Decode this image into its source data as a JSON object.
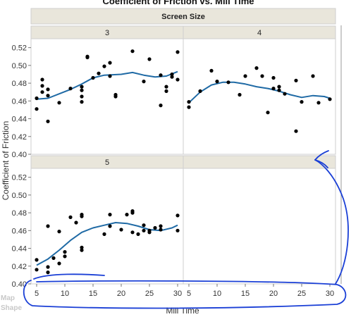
{
  "chart_data": {
    "type": "scatter",
    "title": "Coefficient of Friction vs. Mill Time",
    "group_label": "Screen Size",
    "xlabel": "Mill Time",
    "ylabel": "Coefficient of Friction",
    "side_labels": [
      "Map",
      "Shape"
    ],
    "xlim": [
      4,
      31
    ],
    "ylim": [
      0.4,
      0.53
    ],
    "x_ticks": [
      5,
      10,
      15,
      20,
      25,
      30
    ],
    "y_ticks": [
      0.4,
      0.42,
      0.44,
      0.46,
      0.48,
      0.5,
      0.52
    ],
    "fit": "smoother",
    "colors": {
      "point": "#000000",
      "smoother": "#1f6aa5",
      "header": "#e9e6db",
      "annotation": "#1a3fd6",
      "frame": "#cfcfcf"
    },
    "panels": [
      {
        "label": "3",
        "points": [
          [
            5,
            0.463
          ],
          [
            5,
            0.451
          ],
          [
            6,
            0.484
          ],
          [
            6,
            0.477
          ],
          [
            6,
            0.47
          ],
          [
            7,
            0.466
          ],
          [
            7,
            0.473
          ],
          [
            7,
            0.437
          ],
          [
            9,
            0.458
          ],
          [
            11,
            0.474
          ],
          [
            13,
            0.459
          ],
          [
            13,
            0.465
          ],
          [
            13,
            0.472
          ],
          [
            13,
            0.476
          ],
          [
            14,
            0.51
          ],
          [
            14,
            0.509
          ],
          [
            15,
            0.486
          ],
          [
            16,
            0.491
          ],
          [
            17,
            0.499
          ],
          [
            18,
            0.503
          ],
          [
            18,
            0.488
          ],
          [
            19,
            0.467
          ],
          [
            19,
            0.465
          ],
          [
            22,
            0.516
          ],
          [
            24,
            0.482
          ],
          [
            25,
            0.507
          ],
          [
            27,
            0.455
          ],
          [
            27,
            0.489
          ],
          [
            28,
            0.471
          ],
          [
            28,
            0.476
          ],
          [
            29,
            0.49
          ],
          [
            29,
            0.487
          ],
          [
            30,
            0.484
          ],
          [
            30,
            0.515
          ]
        ],
        "smoother": [
          [
            5,
            0.462
          ],
          [
            7,
            0.463
          ],
          [
            9,
            0.468
          ],
          [
            11,
            0.473
          ],
          [
            13,
            0.479
          ],
          [
            15,
            0.486
          ],
          [
            17,
            0.489
          ],
          [
            20,
            0.49
          ],
          [
            22,
            0.492
          ],
          [
            24,
            0.489
          ],
          [
            26,
            0.487
          ],
          [
            28,
            0.488
          ],
          [
            30,
            0.493
          ]
        ]
      },
      {
        "label": "4",
        "points": [
          [
            5,
            0.459
          ],
          [
            5,
            0.453
          ],
          [
            7,
            0.471
          ],
          [
            9,
            0.494
          ],
          [
            10,
            0.482
          ],
          [
            12,
            0.481
          ],
          [
            14,
            0.467
          ],
          [
            15,
            0.488
          ],
          [
            17,
            0.497
          ],
          [
            18,
            0.488
          ],
          [
            19,
            0.447
          ],
          [
            20,
            0.474
          ],
          [
            20,
            0.486
          ],
          [
            21,
            0.476
          ],
          [
            21,
            0.472
          ],
          [
            22,
            0.468
          ],
          [
            24,
            0.426
          ],
          [
            24,
            0.483
          ],
          [
            25,
            0.459
          ],
          [
            27,
            0.488
          ],
          [
            28,
            0.458
          ],
          [
            30,
            0.462
          ]
        ],
        "smoother": [
          [
            5,
            0.458
          ],
          [
            7,
            0.47
          ],
          [
            9,
            0.478
          ],
          [
            11,
            0.481
          ],
          [
            13,
            0.481
          ],
          [
            15,
            0.479
          ],
          [
            17,
            0.476
          ],
          [
            19,
            0.474
          ],
          [
            21,
            0.471
          ],
          [
            23,
            0.467
          ],
          [
            25,
            0.464
          ],
          [
            27,
            0.466
          ],
          [
            29,
            0.465
          ],
          [
            30,
            0.463
          ]
        ]
      },
      {
        "label": "5",
        "points": [
          [
            5,
            0.427
          ],
          [
            5,
            0.416
          ],
          [
            7,
            0.419
          ],
          [
            7,
            0.413
          ],
          [
            7,
            0.465
          ],
          [
            8,
            0.429
          ],
          [
            9,
            0.423
          ],
          [
            9,
            0.459
          ],
          [
            10,
            0.431
          ],
          [
            10,
            0.436
          ],
          [
            11,
            0.475
          ],
          [
            12,
            0.469
          ],
          [
            13,
            0.478
          ],
          [
            13,
            0.476
          ],
          [
            13,
            0.441
          ],
          [
            13,
            0.438
          ],
          [
            17,
            0.456
          ],
          [
            18,
            0.478
          ],
          [
            18,
            0.465
          ],
          [
            20,
            0.461
          ],
          [
            21,
            0.478
          ],
          [
            22,
            0.48
          ],
          [
            22,
            0.482
          ],
          [
            22,
            0.458
          ],
          [
            23,
            0.456
          ],
          [
            24,
            0.46
          ],
          [
            24,
            0.466
          ],
          [
            25,
            0.46
          ],
          [
            25,
            0.458
          ],
          [
            26,
            0.463
          ],
          [
            27,
            0.465
          ],
          [
            27,
            0.461
          ],
          [
            30,
            0.477
          ],
          [
            30,
            0.46
          ]
        ],
        "smoother": [
          [
            5,
            0.421
          ],
          [
            7,
            0.428
          ],
          [
            9,
            0.438
          ],
          [
            11,
            0.449
          ],
          [
            13,
            0.458
          ],
          [
            15,
            0.463
          ],
          [
            17,
            0.466
          ],
          [
            19,
            0.469
          ],
          [
            21,
            0.468
          ],
          [
            23,
            0.465
          ],
          [
            25,
            0.461
          ],
          [
            27,
            0.46
          ],
          [
            29,
            0.463
          ],
          [
            30,
            0.466
          ]
        ]
      },
      {
        "label": "",
        "points": [],
        "smoother": []
      }
    ]
  }
}
